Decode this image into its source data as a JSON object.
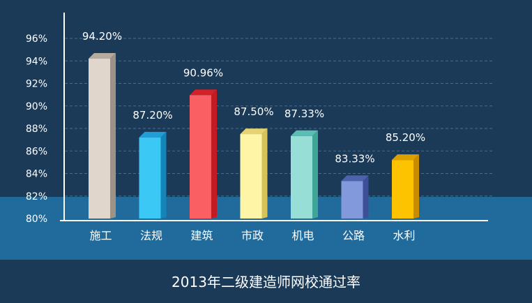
{
  "chart_data": {
    "type": "bar",
    "title": "2013年二级建造师网校通过率",
    "categories": [
      "施工",
      "法规",
      "建筑",
      "市政",
      "机电",
      "公路",
      "水利"
    ],
    "values": [
      94.2,
      87.2,
      90.96,
      87.5,
      87.33,
      83.33,
      85.2
    ],
    "value_labels": [
      "94.20%",
      "87.20%",
      "90.96%",
      "87.50%",
      "87.33%",
      "83.33%",
      "85.20%"
    ],
    "yticks": [
      "80%",
      "82%",
      "84%",
      "86%",
      "88%",
      "90%",
      "92%",
      "94%",
      "96%"
    ],
    "ylim": [
      80,
      97
    ],
    "grid": true,
    "colors": [
      "#e0d6cc",
      "#3cc8f4",
      "#fa5f63",
      "#fff5a6",
      "#96ded6",
      "#8299dc",
      "#fec300"
    ],
    "side_colors": [
      "#9c9286",
      "#1584b8",
      "#c21c22",
      "#d6c258",
      "#3fa597",
      "#3c4f98",
      "#c98c00"
    ],
    "top_colors": [
      "#b4aa9e",
      "#1f9ed8",
      "#d62027",
      "#e5d373",
      "#5cbeb2",
      "#4f63ad",
      "#d9a000"
    ]
  }
}
